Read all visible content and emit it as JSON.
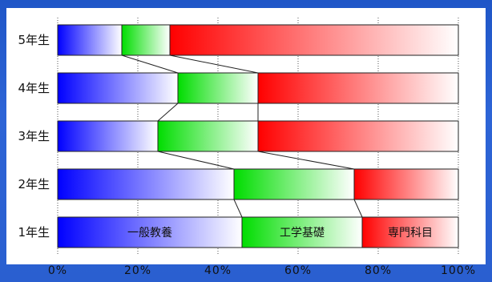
{
  "chart_data": {
    "type": "bar",
    "orientation": "horizontal",
    "stacked": true,
    "normalized": true,
    "categories": [
      "5年生",
      "4年生",
      "3年生",
      "2年生",
      "1年生"
    ],
    "series": [
      {
        "name": "一般教養",
        "color": "#0000ff",
        "values": [
          16,
          30,
          25,
          44,
          46
        ]
      },
      {
        "name": "工学基礎",
        "color": "#00dd00",
        "values": [
          12,
          20,
          25,
          30,
          30
        ]
      },
      {
        "name": "専門科目",
        "color": "#ff0000",
        "values": [
          72,
          50,
          50,
          26,
          24
        ]
      }
    ],
    "segment_labels_row": "1年生",
    "xticks": [
      "0%",
      "20%",
      "40%",
      "60%",
      "80%",
      "100%"
    ],
    "xlim": [
      0,
      100
    ],
    "grid": "vertical-dotted"
  }
}
